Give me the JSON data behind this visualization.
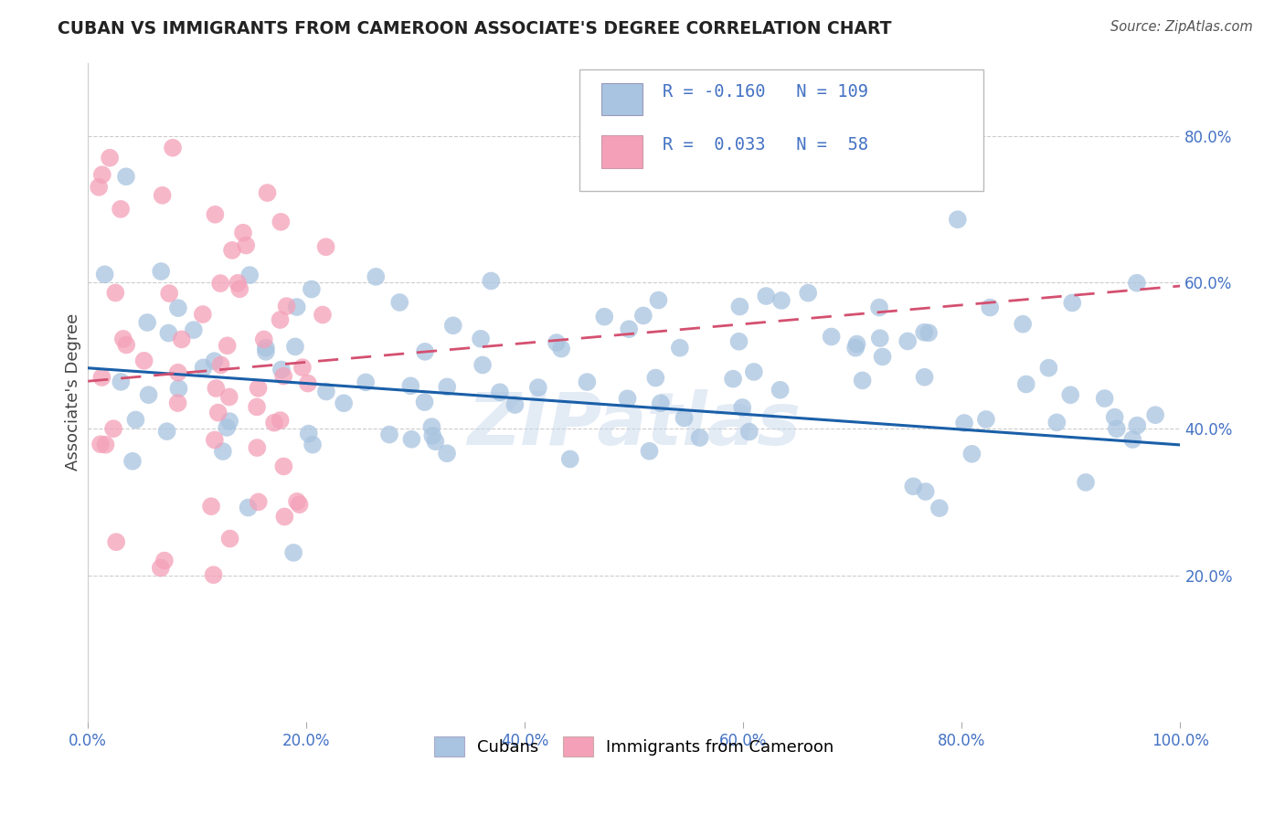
{
  "title": "CUBAN VS IMMIGRANTS FROM CAMEROON ASSOCIATE'S DEGREE CORRELATION CHART",
  "source": "Source: ZipAtlas.com",
  "ylabel": "Associate's Degree",
  "legend_label1": "Cubans",
  "legend_label2": "Immigrants from Cameroon",
  "r1": -0.16,
  "n1": 109,
  "r2": 0.033,
  "n2": 58,
  "color1": "#a8c4e0",
  "color2": "#f4a0b8",
  "trendline1_color": "#1a5fa8",
  "trendline2_color": "#d45070",
  "background_color": "#ffffff",
  "watermark": "ZIPatlas",
  "xlim": [
    0.0,
    1.0
  ],
  "ylim": [
    0.0,
    0.9
  ],
  "yticks": [
    0.2,
    0.4,
    0.6,
    0.8
  ],
  "ytick_labels": [
    "20.0%",
    "40.0%",
    "60.0%",
    "80.0%"
  ],
  "xticks": [
    0.0,
    0.2,
    0.4,
    0.6,
    0.8,
    1.0
  ],
  "xtick_labels": [
    "0.0%",
    "20.0%",
    "40.0%",
    "60.0%",
    "80.0%",
    "100.0%"
  ],
  "tick_color": "#4472c4",
  "title_color": "#222222",
  "source_color": "#555555"
}
